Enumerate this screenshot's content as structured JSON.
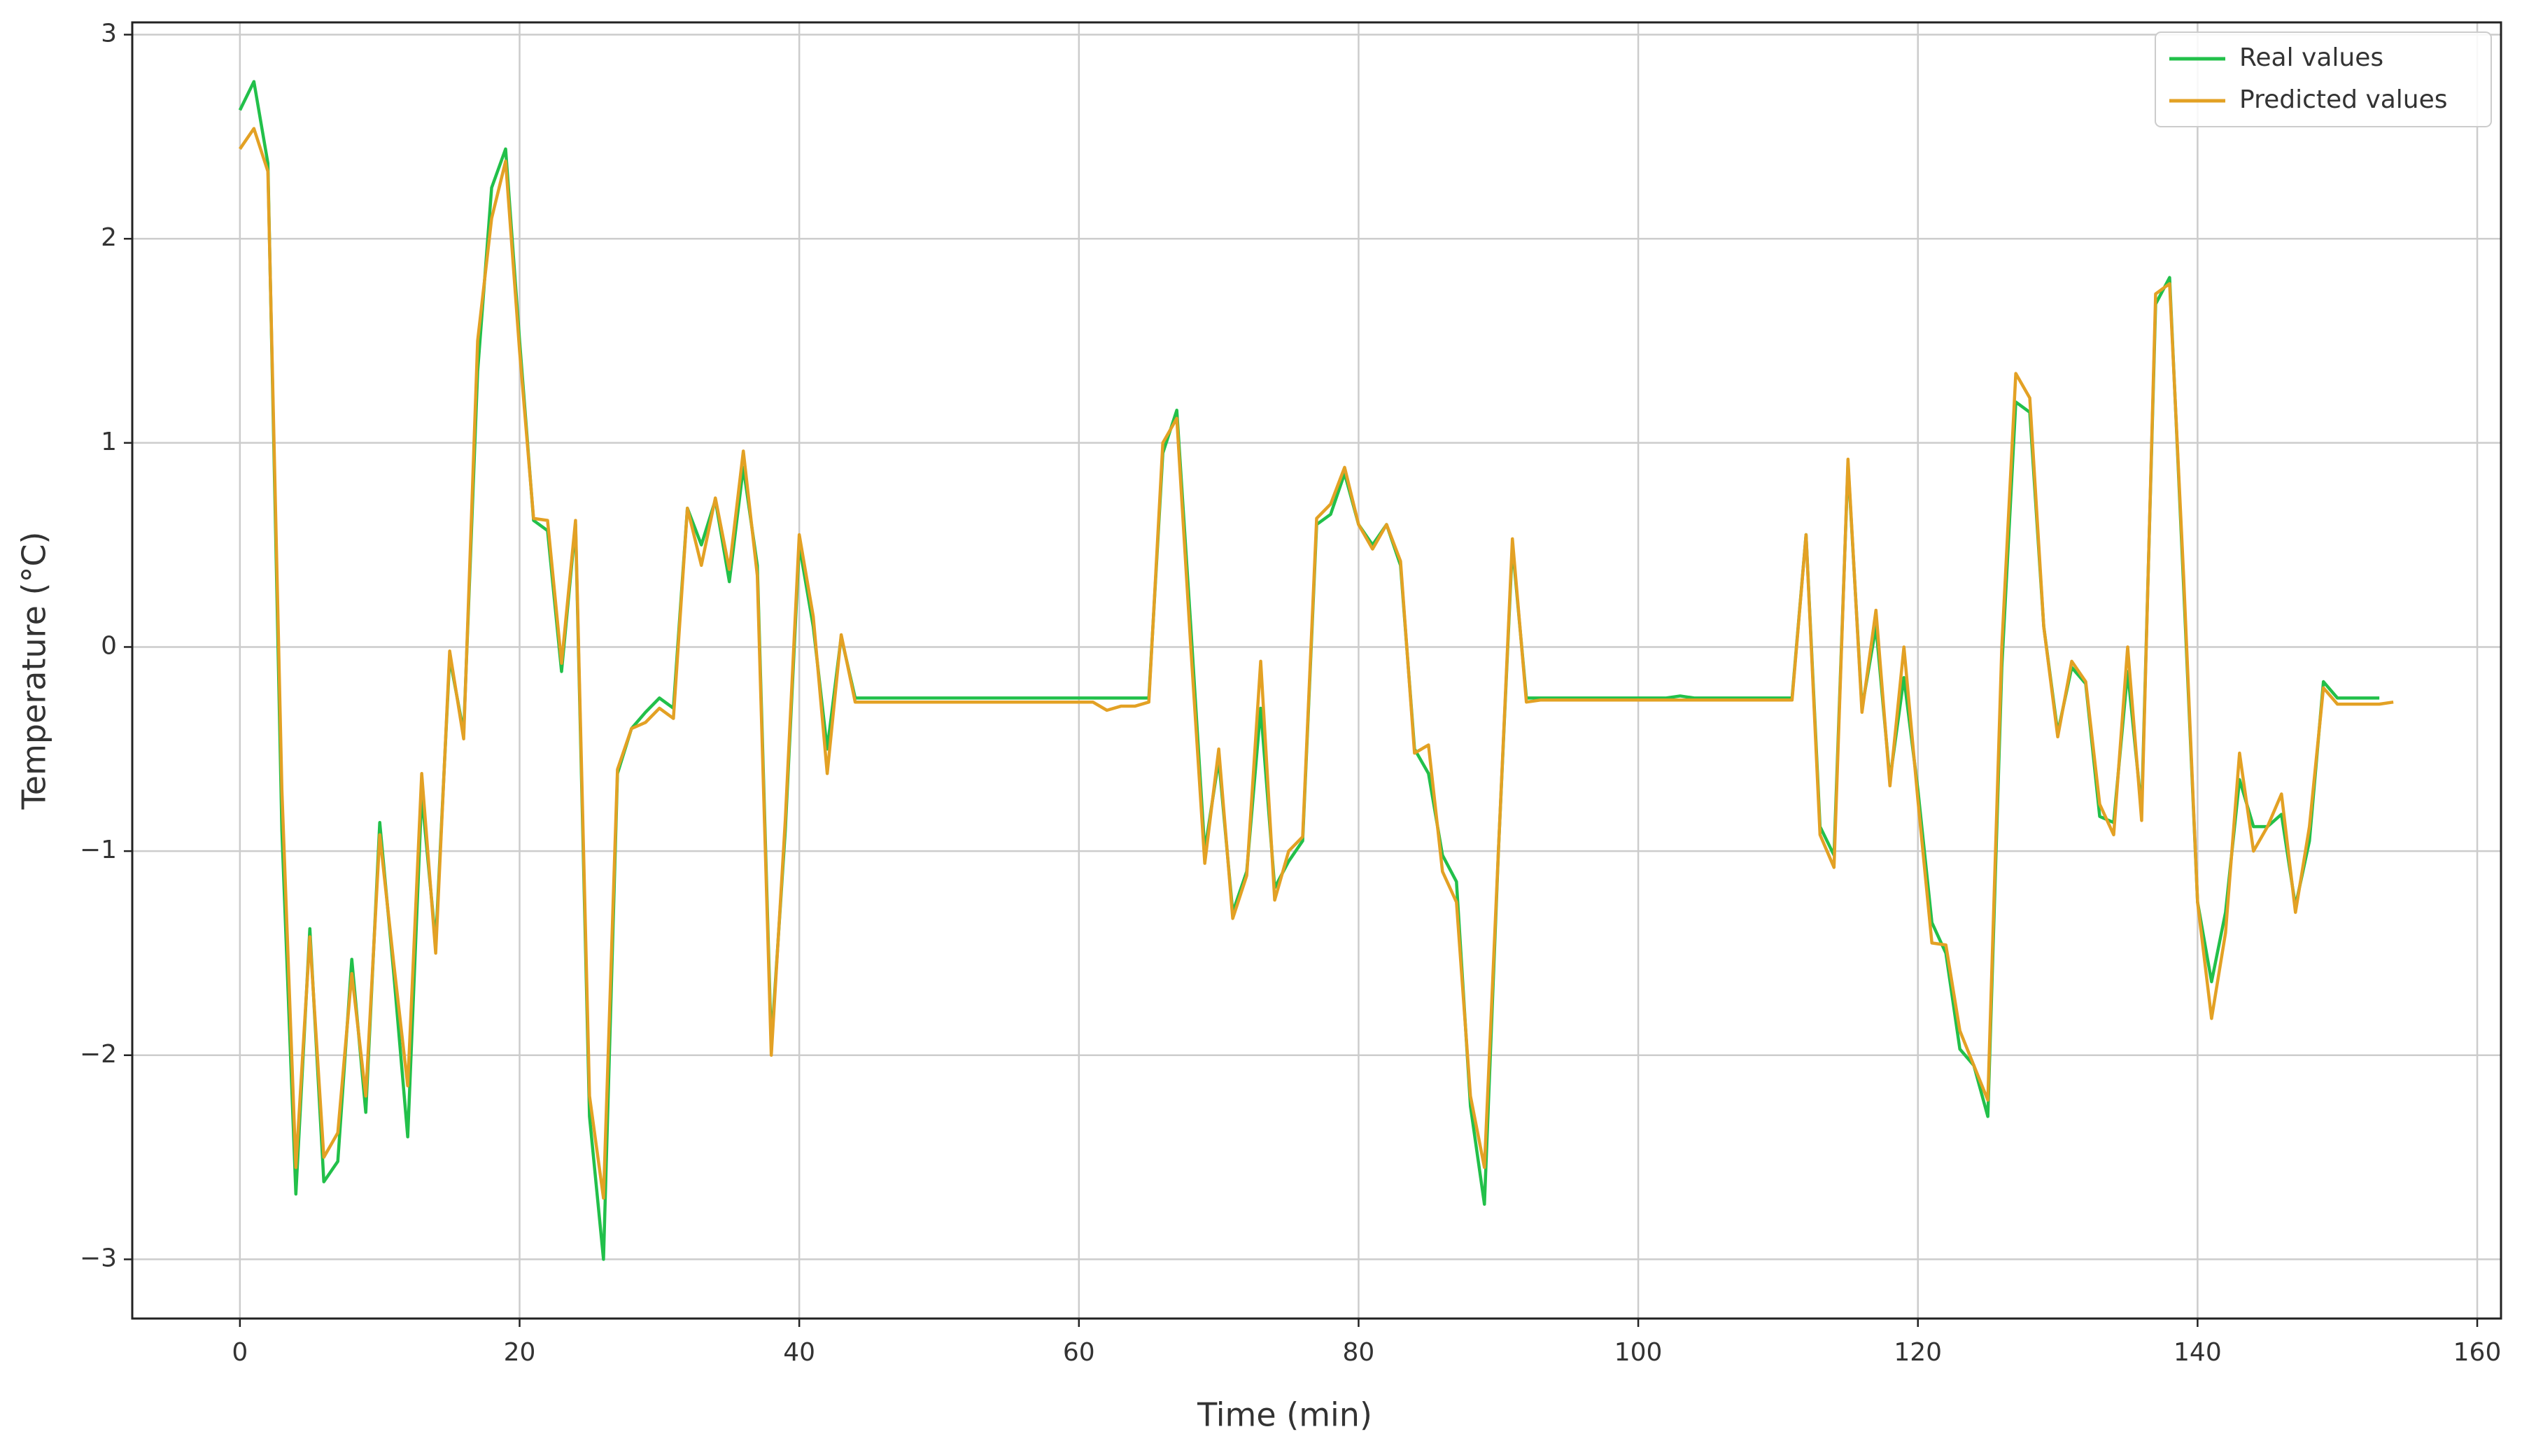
{
  "chart_data": {
    "type": "line",
    "x_label": "Time (min)",
    "y_label": "Temperature (°C)",
    "x": [
      0,
      1,
      2,
      3,
      4,
      5,
      6,
      7,
      8,
      9,
      10,
      11,
      12,
      13,
      14,
      15,
      16,
      17,
      18,
      19,
      20,
      21,
      22,
      23,
      24,
      25,
      26,
      27,
      28,
      29,
      30,
      31,
      32,
      33,
      34,
      35,
      36,
      37,
      38,
      39,
      40,
      41,
      42,
      43,
      44,
      45,
      46,
      47,
      48,
      49,
      50,
      51,
      52,
      53,
      54,
      55,
      56,
      57,
      58,
      59,
      60,
      61,
      62,
      63,
      64,
      65,
      66,
      67,
      68,
      69,
      70,
      71,
      72,
      73,
      74,
      75,
      76,
      77,
      78,
      79,
      80,
      81,
      82,
      83,
      84,
      85,
      86,
      87,
      88,
      89,
      90,
      91,
      92,
      93,
      94,
      95,
      96,
      97,
      98,
      99,
      100,
      101,
      102,
      103,
      104,
      105,
      106,
      107,
      108,
      109,
      110,
      111,
      112,
      113,
      114,
      115,
      116,
      117,
      118,
      119,
      120,
      121,
      122,
      123,
      124,
      125,
      126,
      127,
      128,
      129,
      130,
      131,
      132,
      133,
      134,
      135,
      136,
      137,
      138,
      139,
      140,
      141,
      142,
      143,
      144,
      145,
      146,
      147,
      148,
      149,
      150,
      151,
      152,
      153,
      154
    ],
    "series": [
      {
        "name": "Real values",
        "color": "#22c04a",
        "values": [
          2.63,
          2.77,
          2.37,
          -0.9,
          -2.68,
          -1.38,
          -2.62,
          -2.52,
          -1.53,
          -2.28,
          -0.86,
          -1.6,
          -2.4,
          -0.72,
          -1.45,
          -0.05,
          -0.42,
          1.35,
          2.25,
          2.44,
          1.5,
          0.62,
          0.57,
          -0.12,
          0.6,
          -2.3,
          -3.0,
          -0.62,
          -0.4,
          -0.32,
          -0.25,
          -0.3,
          0.68,
          0.5,
          0.72,
          0.32,
          0.88,
          0.4,
          -1.95,
          -0.9,
          0.5,
          0.1,
          -0.5,
          0.05,
          -0.25,
          -0.25,
          -0.25,
          -0.25,
          -0.25,
          -0.25,
          -0.25,
          -0.25,
          -0.25,
          -0.25,
          -0.25,
          -0.25,
          -0.25,
          -0.25,
          -0.25,
          -0.25,
          -0.25,
          -0.25,
          -0.25,
          -0.25,
          -0.25,
          -0.25,
          0.95,
          1.16,
          0.1,
          -1.0,
          -0.55,
          -1.3,
          -1.1,
          -0.3,
          -1.18,
          -1.05,
          -0.95,
          0.6,
          0.65,
          0.85,
          0.6,
          0.5,
          0.6,
          0.4,
          -0.5,
          -0.62,
          -1.02,
          -1.15,
          -2.25,
          -2.73,
          -1.0,
          0.5,
          -0.25,
          -0.25,
          -0.25,
          -0.25,
          -0.25,
          -0.25,
          -0.25,
          -0.25,
          -0.25,
          -0.25,
          -0.25,
          -0.24,
          -0.25,
          -0.25,
          -0.25,
          -0.25,
          -0.25,
          -0.25,
          -0.25,
          -0.25,
          0.55,
          -0.88,
          -1.02,
          0.9,
          -0.3,
          0.1,
          -0.65,
          -0.15,
          -0.7,
          -1.35,
          -1.5,
          -1.97,
          -2.05,
          -2.3,
          -0.1,
          1.2,
          1.15,
          0.1,
          -0.42,
          -0.1,
          -0.18,
          -0.83,
          -0.86,
          -0.12,
          -0.8,
          1.68,
          1.81,
          0.3,
          -1.25,
          -1.64,
          -1.3,
          -0.65,
          -0.88,
          -0.88,
          -0.82,
          -1.27,
          -0.95,
          -0.17,
          -0.25,
          -0.25,
          -0.25,
          -0.25,
          null
        ]
      },
      {
        "name": "Predicted values",
        "color": "#e3a124",
        "values": [
          2.44,
          2.54,
          2.33,
          -0.7,
          -2.55,
          -1.42,
          -2.5,
          -2.38,
          -1.6,
          -2.2,
          -0.92,
          -1.55,
          -2.15,
          -0.62,
          -1.5,
          -0.02,
          -0.45,
          1.5,
          2.1,
          2.38,
          1.45,
          0.63,
          0.62,
          -0.08,
          0.62,
          -2.2,
          -2.7,
          -0.6,
          -0.4,
          -0.37,
          -0.3,
          -0.35,
          0.68,
          0.4,
          0.73,
          0.38,
          0.96,
          0.35,
          -2.0,
          -0.85,
          0.55,
          0.15,
          -0.62,
          0.06,
          -0.27,
          -0.27,
          -0.27,
          -0.27,
          -0.27,
          -0.27,
          -0.27,
          -0.27,
          -0.27,
          -0.27,
          -0.27,
          -0.27,
          -0.27,
          -0.27,
          -0.27,
          -0.27,
          -0.27,
          -0.27,
          -0.31,
          -0.29,
          -0.29,
          -0.27,
          1.0,
          1.12,
          0.0,
          -1.06,
          -0.5,
          -1.33,
          -1.12,
          -0.07,
          -1.24,
          -1.0,
          -0.93,
          0.63,
          0.7,
          0.88,
          0.6,
          0.48,
          0.6,
          0.42,
          -0.52,
          -0.48,
          -1.1,
          -1.25,
          -2.2,
          -2.55,
          -1.0,
          0.53,
          -0.27,
          -0.26,
          -0.26,
          -0.26,
          -0.26,
          -0.26,
          -0.26,
          -0.26,
          -0.26,
          -0.26,
          -0.26,
          -0.26,
          -0.26,
          -0.26,
          -0.26,
          -0.26,
          -0.26,
          -0.26,
          -0.26,
          -0.26,
          0.55,
          -0.92,
          -1.08,
          0.92,
          -0.32,
          0.18,
          -0.68,
          0.0,
          -0.75,
          -1.45,
          -1.46,
          -1.88,
          -2.05,
          -2.22,
          0.0,
          1.34,
          1.22,
          0.1,
          -0.44,
          -0.07,
          -0.17,
          -0.77,
          -0.92,
          0.0,
          -0.85,
          1.73,
          1.78,
          0.35,
          -1.25,
          -1.82,
          -1.4,
          -0.52,
          -1.0,
          -0.88,
          -0.72,
          -1.3,
          -0.88,
          -0.2,
          -0.28,
          -0.28,
          -0.28,
          -0.28,
          -0.27
        ]
      }
    ],
    "xlim": [
      -7.7,
      161.7
    ],
    "ylim": [
      -3.29,
      3.06
    ],
    "xticks": [
      0,
      20,
      40,
      60,
      80,
      100,
      120,
      140,
      160
    ],
    "yticks": [
      {
        "value": -3,
        "label": "−3"
      },
      {
        "value": -2,
        "label": "−2"
      },
      {
        "value": -1,
        "label": "−1"
      },
      0,
      1,
      2,
      3
    ],
    "grid": true,
    "legend": "upper right"
  }
}
